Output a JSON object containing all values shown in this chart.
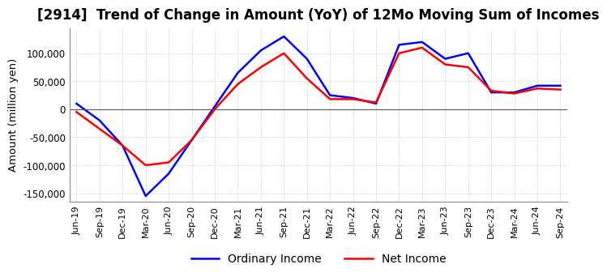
{
  "title": "[2914]  Trend of Change in Amount (YoY) of 12Mo Moving Sum of Incomes",
  "ylabel": "Amount (million yen)",
  "x_labels": [
    "Jun-19",
    "Sep-19",
    "Dec-19",
    "Mar-20",
    "Jun-20",
    "Sep-20",
    "Dec-20",
    "Mar-21",
    "Jun-21",
    "Sep-21",
    "Dec-21",
    "Mar-22",
    "Jun-22",
    "Sep-22",
    "Dec-22",
    "Mar-23",
    "Jun-23",
    "Sep-23",
    "Dec-23",
    "Mar-24",
    "Jun-24",
    "Sep-24"
  ],
  "ordinary_income": [
    10000,
    -20000,
    -65000,
    -155000,
    -115000,
    -55000,
    5000,
    65000,
    105000,
    130000,
    90000,
    25000,
    20000,
    10000,
    115000,
    120000,
    90000,
    100000,
    30000,
    30000,
    42000,
    42000
  ],
  "net_income": [
    -5000,
    -35000,
    -65000,
    -100000,
    -95000,
    -55000,
    0,
    45000,
    75000,
    100000,
    55000,
    18000,
    18000,
    12000,
    100000,
    110000,
    80000,
    75000,
    33000,
    28000,
    37000,
    35000
  ],
  "ordinary_color": "#0000ff",
  "net_color": "#ff0000",
  "ylim": [
    -165000,
    145000
  ],
  "yticks": [
    -150000,
    -100000,
    -50000,
    0,
    50000,
    100000
  ],
  "grid_color": "#aaaaaa",
  "background_color": "#ffffff",
  "title_fontsize": 12,
  "legend_labels": [
    "Ordinary Income",
    "Net Income"
  ]
}
